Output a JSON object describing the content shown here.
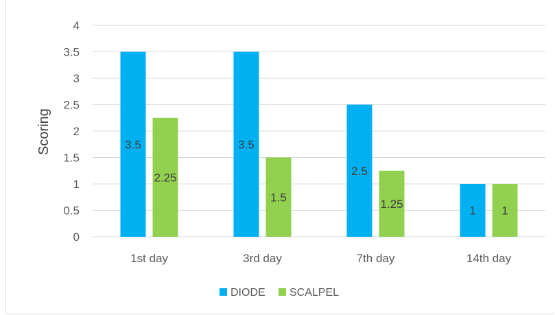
{
  "chart_data": {
    "type": "bar",
    "categories": [
      "1st day",
      "3rd day",
      "7th day",
      "14th day"
    ],
    "series": [
      {
        "name": "DIODE",
        "color": "#00b0f0",
        "values": [
          3.5,
          3.5,
          2.5,
          1
        ]
      },
      {
        "name": "SCALPEL",
        "color": "#92d050",
        "values": [
          2.25,
          1.5,
          1.25,
          1
        ]
      }
    ],
    "data_labels": [
      [
        "3.5",
        "3.5",
        "2.5",
        "1"
      ],
      [
        "2.25",
        "1.5",
        "1.25",
        "1"
      ]
    ],
    "title": "",
    "xlabel": "",
    "ylabel": "Scoring",
    "ylim": [
      0,
      4
    ],
    "yticks": [
      "0",
      "0.5",
      "1",
      "1.5",
      "2",
      "2.5",
      "3",
      "3.5",
      "4"
    ],
    "grid": true,
    "legend_position": "bottom"
  }
}
